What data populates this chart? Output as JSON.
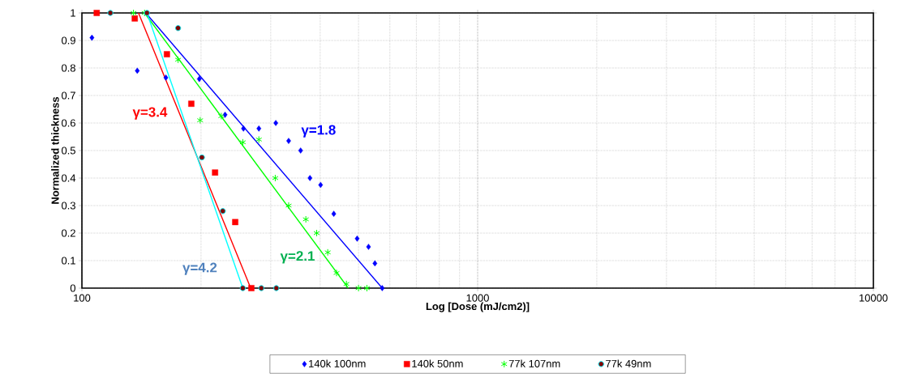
{
  "chart_data": {
    "type": "scatter",
    "xlabel": "Log [Dose (mJ/cm2)]",
    "ylabel": "Normalized thickness",
    "xlim": [
      100,
      10000
    ],
    "xticks": [
      100,
      1000,
      10000
    ],
    "ylim": [
      0,
      1
    ],
    "yticks": [
      0,
      0.1,
      0.2,
      0.3,
      0.4,
      0.5,
      0.6,
      0.7,
      0.8,
      0.9,
      1
    ],
    "log": "x",
    "grid": true,
    "legend": "bottom",
    "series": [
      {
        "name": "140k 100nm",
        "color": "#0000ff",
        "marker": "diamond",
        "x": [
          106,
          138,
          163,
          198,
          230,
          256,
          280,
          309,
          333,
          357,
          377,
          401,
          433,
          496,
          530,
          550,
          574
        ],
        "values": [
          0.91,
          0.79,
          0.765,
          0.76,
          0.63,
          0.58,
          0.58,
          0.6,
          0.535,
          0.5,
          0.4,
          0.375,
          0.27,
          0.18,
          0.15,
          0.09,
          0
        ]
      },
      {
        "name": "140k 50nm",
        "color": "#ff0000",
        "marker": "square",
        "x": [
          109,
          136,
          164,
          189,
          217,
          244,
          268
        ],
        "values": [
          1,
          0.98,
          0.85,
          0.67,
          0.42,
          0.24,
          0
        ]
      },
      {
        "name": "77k 107nm",
        "color": "#00ff00",
        "marker": "cross",
        "x": [
          135,
          144,
          175,
          199,
          225,
          255,
          280,
          308,
          333,
          368,
          392,
          418,
          440,
          466,
          500,
          525
        ],
        "values": [
          1,
          1,
          0.83,
          0.61,
          0.625,
          0.53,
          0.54,
          0.4,
          0.3,
          0.25,
          0.2,
          0.13,
          0.055,
          0.015,
          0,
          0
        ]
      },
      {
        "name": "77k 49nm",
        "color": "#00e5ee",
        "marker": "circle",
        "x": [
          118,
          146,
          175,
          201,
          227,
          255,
          284,
          310
        ],
        "values": [
          1,
          1,
          0.945,
          0.475,
          0.28,
          0,
          0,
          0
        ]
      },
      {
        "type": "line",
        "color": "#0000ff",
        "x": [
          145,
          574
        ],
        "values": [
          1,
          0
        ]
      },
      {
        "type": "line",
        "color": "#ff0000",
        "x": [
          139,
          267
        ],
        "values": [
          1,
          0
        ]
      },
      {
        "type": "line",
        "color": "#00ff00",
        "x": [
          144,
          471
        ],
        "values": [
          1,
          0
        ]
      },
      {
        "type": "line",
        "color": "#00ffff",
        "x": [
          146,
          255
        ],
        "values": [
          1,
          0
        ]
      }
    ],
    "annotations": [
      "γ=3.4",
      "γ=1.8",
      "γ=2.1",
      "γ=4.2"
    ]
  }
}
